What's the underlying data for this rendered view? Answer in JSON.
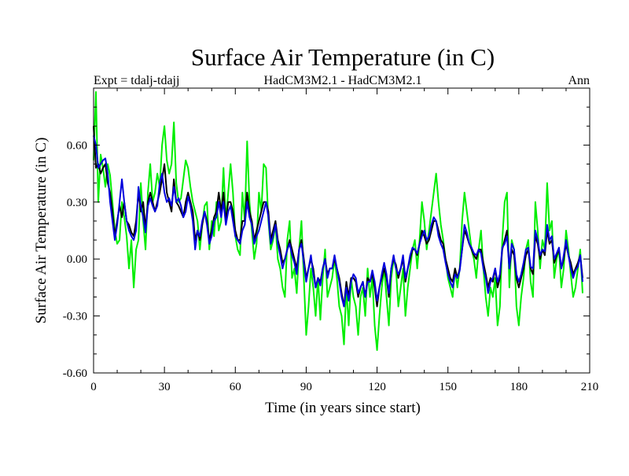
{
  "chart_data": {
    "type": "line",
    "title": "Surface Air Temperature (in C)",
    "subtitle_left": "Expt = tdalj-tdajj",
    "subtitle_center": "HadCM3M2.1 - HadCM3M2.1",
    "subtitle_right": "Ann",
    "xlabel": "Time (in years since start)",
    "ylabel": "Surface Air Temperature (in C)",
    "xlim": [
      0,
      210
    ],
    "ylim": [
      -0.6,
      0.9
    ],
    "xticks": [
      0,
      30,
      60,
      90,
      120,
      150,
      180,
      210
    ],
    "xtick_labels": [
      "0",
      "30",
      "60",
      "90",
      "120",
      "150",
      "180",
      "210"
    ],
    "yticks": [
      -0.6,
      -0.3,
      0.0,
      0.3,
      0.6
    ],
    "ytick_labels": [
      "-0.60",
      "-0.30",
      "0.00",
      "0.30",
      "0.60"
    ],
    "grid": false,
    "series": [
      {
        "name": "green",
        "color": "#00ee00",
        "x_start": 0,
        "x_step": 1,
        "values": [
          0.52,
          0.88,
          0.3,
          0.55,
          0.48,
          0.38,
          0.5,
          0.44,
          0.3,
          0.15,
          0.08,
          0.1,
          0.3,
          0.22,
          0.12,
          -0.05,
          0.1,
          -0.15,
          0.05,
          0.1,
          0.4,
          0.2,
          0.05,
          0.35,
          0.5,
          0.3,
          0.35,
          0.45,
          0.38,
          0.6,
          0.7,
          0.52,
          0.45,
          0.5,
          0.72,
          0.4,
          0.3,
          0.32,
          0.42,
          0.52,
          0.48,
          0.38,
          0.3,
          0.25,
          0.2,
          0.05,
          0.18,
          0.28,
          0.3,
          0.05,
          0.2,
          0.12,
          0.3,
          0.15,
          0.2,
          0.48,
          0.2,
          0.35,
          0.5,
          0.35,
          0.12,
          0.05,
          0.02,
          0.35,
          0.2,
          0.62,
          0.3,
          0.15,
          0.0,
          0.08,
          0.35,
          0.25,
          0.5,
          0.48,
          0.2,
          0.05,
          0.1,
          0.18,
          0.0,
          -0.05,
          -0.15,
          -0.2,
          0.1,
          0.2,
          -0.1,
          -0.05,
          -0.18,
          0.05,
          0.2,
          -0.1,
          -0.4,
          -0.25,
          -0.05,
          -0.15,
          -0.3,
          -0.1,
          -0.32,
          -0.1,
          0.05,
          -0.2,
          -0.15,
          -0.1,
          0.0,
          -0.1,
          -0.25,
          -0.3,
          -0.45,
          -0.15,
          -0.35,
          -0.1,
          -0.2,
          -0.25,
          -0.4,
          -0.2,
          -0.15,
          -0.3,
          -0.05,
          -0.2,
          -0.1,
          -0.35,
          -0.48,
          -0.3,
          -0.15,
          -0.05,
          -0.2,
          -0.35,
          -0.1,
          0.0,
          -0.05,
          -0.25,
          -0.15,
          -0.05,
          -0.3,
          -0.15,
          -0.05,
          0.05,
          0.1,
          -0.05,
          0.1,
          0.3,
          0.2,
          0.05,
          0.15,
          0.25,
          0.35,
          0.45,
          0.3,
          0.18,
          0.1,
          0.0,
          -0.1,
          -0.15,
          -0.2,
          -0.05,
          -0.15,
          -0.05,
          0.2,
          0.35,
          0.25,
          0.15,
          0.05,
          0.0,
          -0.1,
          0.05,
          0.15,
          -0.05,
          -0.2,
          -0.3,
          -0.15,
          -0.2,
          -0.1,
          -0.35,
          -0.25,
          0.1,
          0.3,
          0.35,
          -0.15,
          0.1,
          0.05,
          -0.25,
          -0.35,
          -0.2,
          -0.1,
          0.05,
          0.1,
          -0.12,
          -0.2,
          0.3,
          0.15,
          -0.05,
          0.1,
          0.05,
          0.4,
          0.15,
          0.2,
          -0.1,
          0.0,
          0.05,
          -0.15,
          -0.05,
          0.15,
          0.05,
          -0.08,
          -0.2,
          -0.15,
          -0.05,
          0.05,
          -0.18
        ]
      },
      {
        "name": "black",
        "color": "#000000",
        "x_start": 0,
        "x_step": 1,
        "values": [
          0.7,
          0.48,
          0.5,
          0.45,
          0.48,
          0.5,
          0.4,
          0.35,
          0.25,
          0.12,
          0.2,
          0.28,
          0.22,
          0.3,
          0.2,
          0.18,
          0.14,
          0.12,
          0.2,
          0.35,
          0.25,
          0.3,
          0.16,
          0.3,
          0.35,
          0.3,
          0.25,
          0.3,
          0.35,
          0.42,
          0.5,
          0.35,
          0.3,
          0.25,
          0.42,
          0.3,
          0.28,
          0.25,
          0.22,
          0.3,
          0.35,
          0.3,
          0.25,
          0.1,
          0.15,
          0.1,
          0.18,
          0.25,
          0.2,
          0.1,
          0.15,
          0.22,
          0.25,
          0.35,
          0.25,
          0.35,
          0.2,
          0.3,
          0.3,
          0.25,
          0.15,
          0.1,
          0.1,
          0.2,
          0.2,
          0.35,
          0.25,
          0.2,
          0.1,
          0.15,
          0.2,
          0.25,
          0.3,
          0.3,
          0.25,
          0.1,
          0.15,
          0.2,
          0.1,
          0.05,
          -0.02,
          0.0,
          0.05,
          0.1,
          0.05,
          0.0,
          -0.05,
          0.05,
          0.1,
          0.0,
          -0.1,
          -0.05,
          0.0,
          -0.05,
          -0.15,
          -0.1,
          -0.12,
          -0.05,
          0.0,
          -0.08,
          -0.05,
          -0.05,
          0.0,
          -0.05,
          -0.1,
          -0.18,
          -0.25,
          -0.12,
          -0.2,
          -0.1,
          -0.1,
          -0.12,
          -0.2,
          -0.15,
          -0.12,
          -0.2,
          -0.1,
          -0.12,
          -0.08,
          -0.15,
          -0.25,
          -0.15,
          -0.1,
          -0.05,
          -0.1,
          -0.2,
          -0.05,
          0.0,
          -0.03,
          -0.1,
          -0.05,
          0.0,
          -0.12,
          -0.05,
          0.0,
          0.05,
          0.05,
          0.02,
          0.08,
          0.15,
          0.12,
          0.08,
          0.1,
          0.15,
          0.2,
          0.2,
          0.15,
          0.1,
          0.08,
          0.0,
          -0.05,
          -0.1,
          -0.12,
          -0.05,
          -0.1,
          -0.05,
          0.05,
          0.15,
          0.12,
          0.08,
          0.05,
          0.02,
          0.0,
          0.05,
          0.05,
          -0.02,
          -0.08,
          -0.15,
          -0.1,
          -0.12,
          -0.05,
          -0.15,
          -0.1,
          0.05,
          0.1,
          0.15,
          -0.05,
          0.05,
          0.02,
          -0.1,
          -0.15,
          -0.1,
          -0.05,
          0.02,
          0.05,
          -0.05,
          -0.08,
          0.12,
          0.08,
          0.0,
          0.05,
          0.02,
          0.15,
          0.08,
          0.1,
          -0.02,
          0.02,
          0.05,
          -0.05,
          0.0,
          0.08,
          0.02,
          -0.02,
          -0.08,
          -0.05,
          -0.02,
          0.02,
          -0.1
        ]
      },
      {
        "name": "blue",
        "color": "#0000dd",
        "x_start": 0,
        "x_step": 1,
        "values": [
          0.65,
          0.6,
          0.48,
          0.5,
          0.52,
          0.53,
          0.45,
          0.3,
          0.2,
          0.1,
          0.18,
          0.3,
          0.42,
          0.3,
          0.2,
          0.15,
          0.12,
          0.1,
          0.15,
          0.38,
          0.28,
          0.22,
          0.14,
          0.28,
          0.32,
          0.28,
          0.25,
          0.28,
          0.4,
          0.45,
          0.35,
          0.3,
          0.32,
          0.28,
          0.38,
          0.3,
          0.32,
          0.28,
          0.22,
          0.25,
          0.33,
          0.28,
          0.2,
          0.05,
          0.15,
          0.12,
          0.2,
          0.25,
          0.18,
          0.08,
          0.12,
          0.2,
          0.22,
          0.3,
          0.22,
          0.3,
          0.18,
          0.25,
          0.28,
          0.2,
          0.12,
          0.1,
          0.08,
          0.15,
          0.18,
          0.3,
          0.22,
          0.18,
          0.08,
          0.12,
          0.15,
          0.2,
          0.25,
          0.3,
          0.22,
          0.08,
          0.12,
          0.18,
          0.08,
          0.02,
          -0.05,
          0.0,
          0.05,
          0.08,
          0.02,
          -0.02,
          -0.08,
          0.05,
          0.08,
          -0.02,
          -0.12,
          -0.05,
          0.02,
          -0.08,
          -0.15,
          -0.1,
          -0.14,
          -0.05,
          0.0,
          -0.1,
          -0.05,
          -0.05,
          0.02,
          -0.05,
          -0.12,
          -0.2,
          -0.25,
          -0.15,
          -0.22,
          -0.12,
          -0.08,
          -0.1,
          -0.18,
          -0.15,
          -0.12,
          -0.2,
          -0.12,
          -0.12,
          -0.06,
          -0.12,
          -0.22,
          -0.15,
          -0.08,
          -0.02,
          -0.08,
          -0.18,
          -0.05,
          0.02,
          -0.05,
          -0.08,
          -0.05,
          0.02,
          -0.1,
          -0.05,
          0.02,
          0.06,
          0.05,
          0.03,
          0.08,
          0.12,
          0.15,
          0.1,
          0.12,
          0.18,
          0.22,
          0.2,
          0.12,
          0.08,
          0.05,
          -0.02,
          -0.08,
          -0.12,
          -0.15,
          -0.08,
          -0.1,
          -0.06,
          0.05,
          0.18,
          0.14,
          0.08,
          0.06,
          0.03,
          0.02,
          0.05,
          0.03,
          -0.05,
          -0.1,
          -0.18,
          -0.12,
          -0.1,
          -0.05,
          -0.12,
          -0.08,
          0.06,
          0.08,
          0.12,
          -0.05,
          0.08,
          0.05,
          -0.08,
          -0.12,
          -0.08,
          -0.02,
          0.05,
          0.06,
          -0.04,
          -0.05,
          0.15,
          0.1,
          0.02,
          0.05,
          0.04,
          0.18,
          0.1,
          0.12,
          0.0,
          0.03,
          0.06,
          -0.05,
          0.02,
          0.1,
          0.02,
          -0.05,
          -0.1,
          -0.06,
          -0.04,
          0.02,
          -0.12
        ]
      }
    ]
  }
}
